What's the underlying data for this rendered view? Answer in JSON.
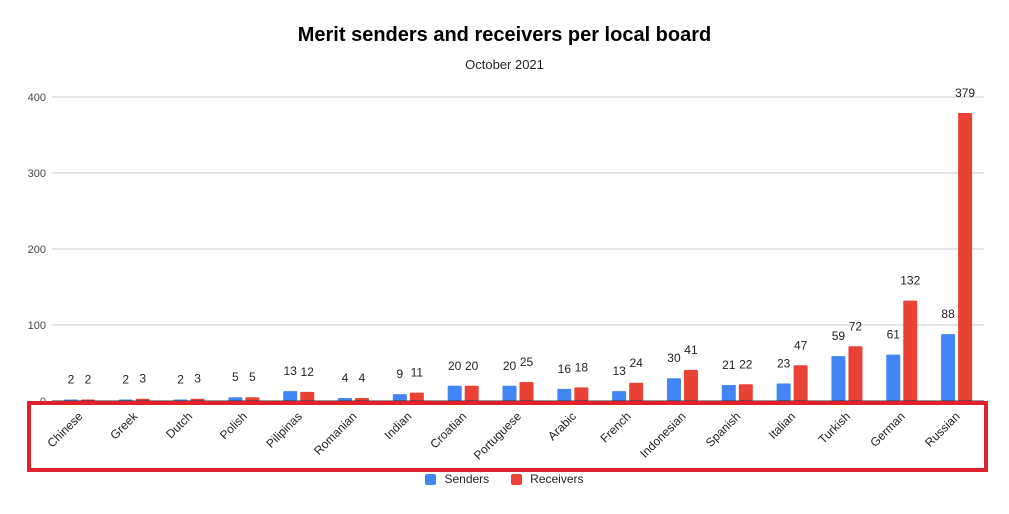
{
  "chart_data": {
    "type": "bar",
    "title": "Merit senders and receivers per local board",
    "subtitle": "October 2021",
    "categories": [
      "Chinese",
      "Greek",
      "Dutch",
      "Polish",
      "Pilipinas",
      "Romanian",
      "Indian",
      "Croatian",
      "Portuguese",
      "Arabic",
      "French",
      "Indonesian",
      "Spanish",
      "Italian",
      "Turkish",
      "German",
      "Russian"
    ],
    "series": [
      {
        "name": "Senders",
        "color": "#4285f4",
        "values": [
          2,
          2,
          2,
          5,
          13,
          4,
          9,
          20,
          20,
          16,
          13,
          30,
          21,
          23,
          59,
          61,
          88
        ]
      },
      {
        "name": "Receivers",
        "color": "#ea4335",
        "values": [
          2,
          3,
          3,
          5,
          12,
          4,
          11,
          20,
          25,
          18,
          24,
          41,
          22,
          47,
          72,
          132,
          379
        ]
      }
    ],
    "y_ticks": [
      0,
      100,
      200,
      300,
      400
    ],
    "ylim": [
      0,
      400
    ],
    "grid": true,
    "legend_position": "bottom",
    "highlight_color": "#e0202b"
  }
}
